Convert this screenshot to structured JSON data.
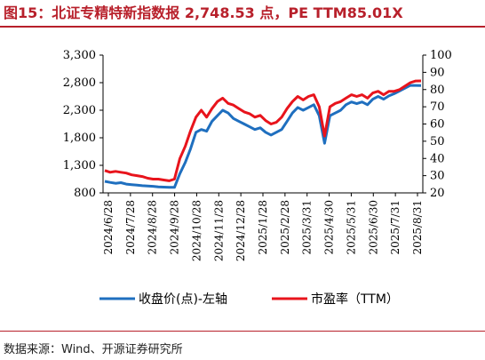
{
  "title": "图15：北证专精特新指数报 2,748.53 点，PE TTM85.01X",
  "source": "数据来源：Wind、开源证券研究所",
  "chart_data": {
    "type": "line",
    "x_labels": [
      "2024/6/28",
      "2024/7/28",
      "2024/8/28",
      "2024/9/28",
      "2024/10/28",
      "2024/11/28",
      "2024/12/28",
      "2025/1/28",
      "2025/2/28",
      "2025/3/31",
      "2025/4/30",
      "2025/5/31",
      "2025/6/30",
      "2025/7/31",
      "2025/8/31"
    ],
    "y_left": {
      "min": 800,
      "max": 3300,
      "ticks": [
        "800",
        "1,300",
        "1,800",
        "2,300",
        "2,800",
        "3,300"
      ]
    },
    "y_right": {
      "min": 20,
      "max": 100,
      "ticks": [
        "20",
        "30",
        "40",
        "50",
        "60",
        "70",
        "80",
        "90",
        "100"
      ]
    },
    "grid": false,
    "legend_position": "bottom",
    "series": [
      {
        "name": "收盘价(点)-左轴",
        "axis": "left",
        "color": "#1f6fbf",
        "values": [
          1010,
          990,
          975,
          985,
          960,
          950,
          940,
          930,
          925,
          920,
          910,
          905,
          900,
          900,
          1150,
          1350,
          1600,
          1900,
          1950,
          1920,
          2100,
          2200,
          2300,
          2250,
          2150,
          2100,
          2050,
          2000,
          1950,
          1980,
          1900,
          1850,
          1900,
          1950,
          2100,
          2250,
          2350,
          2300,
          2350,
          2400,
          2200,
          1700,
          2200,
          2250,
          2300,
          2400,
          2450,
          2420,
          2450,
          2400,
          2500,
          2550,
          2500,
          2560,
          2600,
          2650,
          2700,
          2750,
          2750,
          2748
        ]
      },
      {
        "name": "市盈率（TTM）",
        "axis": "right",
        "color": "#e8141c",
        "values": [
          33,
          32,
          32.5,
          32,
          31.5,
          30.5,
          30,
          29.5,
          28.5,
          28,
          28,
          27.5,
          27,
          28,
          40,
          47,
          56,
          64,
          68,
          64,
          69,
          73,
          75,
          72,
          71,
          69,
          67,
          66,
          64,
          65,
          62,
          60,
          61,
          64,
          69,
          73,
          76,
          74,
          76,
          77,
          70,
          53,
          70,
          72,
          73,
          75,
          77,
          76,
          77,
          75,
          78,
          79,
          77,
          79,
          79,
          80,
          82,
          84,
          85,
          85.01
        ]
      }
    ]
  }
}
